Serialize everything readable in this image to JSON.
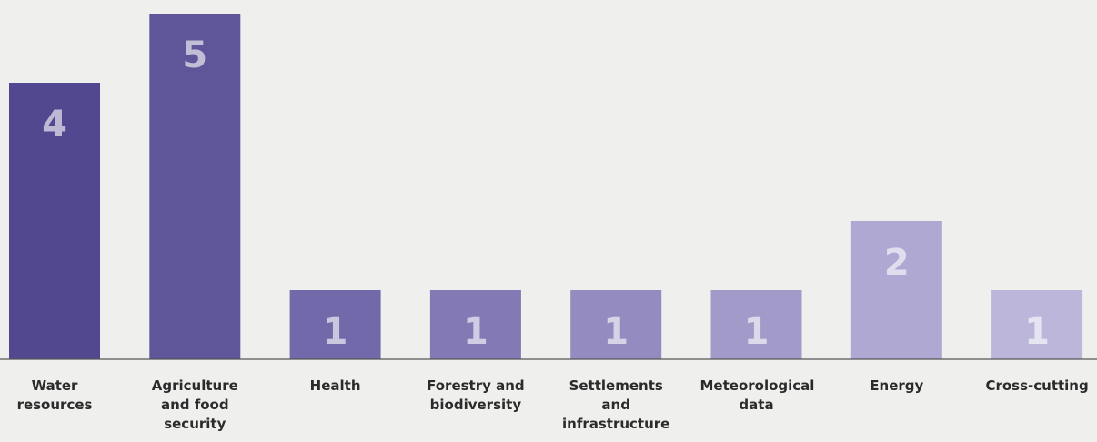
{
  "chart_data": {
    "type": "bar",
    "categories": [
      "Water resources",
      "Agriculture and food security",
      "Health",
      "Forestry and biodiversity",
      "Settlements and infrastructure",
      "Meteorological data",
      "Energy",
      "Cross-cutting"
    ],
    "values": [
      4,
      5,
      1,
      1,
      1,
      1,
      2,
      1
    ],
    "colors": [
      "#51488f",
      "#5f5599",
      "#7169aa",
      "#8279b5",
      "#948cc0",
      "#a29bc9",
      "#aea8d2",
      "#bcb7da"
    ],
    "ylim": [
      0,
      5
    ]
  }
}
